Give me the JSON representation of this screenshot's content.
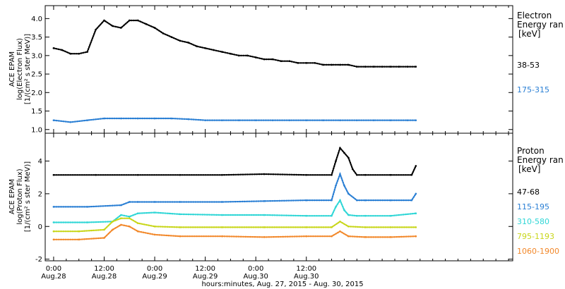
{
  "chart_data": [
    {
      "type": "scatter",
      "panel": "electron",
      "ylabel_lines": [
        "ACE EPAM",
        "log(Electron Flux)",
        "[1/(cm² s ster MeV)]"
      ],
      "ylim": [
        0.9,
        4.35
      ],
      "yticks": [
        "1.0",
        "1.5",
        "2.0",
        "2.5",
        "3.0",
        "3.5",
        "4.0"
      ],
      "legend_title_lines": [
        "Electron",
        "Energy ran",
        "[keV]"
      ],
      "grid": false,
      "series": [
        {
          "name": "38-53",
          "color": "#000000",
          "x": [
            0,
            2,
            4,
            6,
            8,
            10,
            12,
            14,
            16,
            18,
            20,
            22,
            24,
            26,
            28,
            30,
            32,
            34,
            36,
            38,
            40,
            42,
            44,
            46,
            48,
            50,
            52,
            54,
            56,
            58,
            60,
            62,
            64,
            66,
            68,
            70,
            72,
            74,
            76,
            78,
            80,
            82,
            84,
            86
          ],
          "values": [
            3.2,
            3.15,
            3.05,
            3.05,
            3.1,
            3.7,
            3.95,
            3.8,
            3.75,
            3.95,
            3.95,
            3.85,
            3.75,
            3.6,
            3.5,
            3.4,
            3.35,
            3.25,
            3.2,
            3.15,
            3.1,
            3.05,
            3.0,
            3.0,
            2.95,
            2.9,
            2.9,
            2.85,
            2.85,
            2.8,
            2.8,
            2.8,
            2.75,
            2.75,
            2.75,
            2.75,
            2.7,
            2.7,
            2.7,
            2.7,
            2.7,
            2.7,
            2.7,
            2.7
          ]
        },
        {
          "name": "175-315",
          "color": "#2a7fd4",
          "x": [
            0,
            4,
            8,
            12,
            16,
            20,
            24,
            28,
            32,
            36,
            40,
            44,
            48,
            52,
            56,
            60,
            64,
            68,
            72,
            76,
            80,
            84,
            86
          ],
          "values": [
            1.25,
            1.2,
            1.25,
            1.3,
            1.3,
            1.3,
            1.3,
            1.3,
            1.28,
            1.25,
            1.25,
            1.25,
            1.25,
            1.25,
            1.25,
            1.25,
            1.25,
            1.25,
            1.25,
            1.25,
            1.25,
            1.25,
            1.25
          ]
        }
      ]
    },
    {
      "type": "scatter",
      "panel": "proton",
      "ylabel_lines": [
        "ACE EPAM",
        "log(Proton Flux)",
        "[1/(cm² s ster MeV)]"
      ],
      "ylim": [
        -2.1,
        5.7
      ],
      "yticks": [
        "-2",
        "0",
        "2",
        "4"
      ],
      "legend_title_lines": [
        "Proton",
        "Energy ran",
        "[keV]"
      ],
      "grid": false,
      "series": [
        {
          "name": "47-68",
          "color": "#000000",
          "x": [
            0,
            10,
            20,
            30,
            40,
            50,
            60,
            66,
            67,
            68,
            69,
            70,
            71,
            72,
            74,
            80,
            85,
            86
          ],
          "values": [
            3.15,
            3.15,
            3.15,
            3.15,
            3.15,
            3.2,
            3.15,
            3.15,
            4.0,
            4.8,
            4.5,
            4.2,
            3.5,
            3.15,
            3.15,
            3.15,
            3.15,
            3.7
          ]
        },
        {
          "name": "115-195",
          "color": "#2a7fd4",
          "x": [
            0,
            8,
            16,
            18,
            20,
            24,
            30,
            40,
            50,
            60,
            66,
            67,
            68,
            69,
            70,
            72,
            74,
            80,
            85,
            86
          ],
          "values": [
            1.2,
            1.2,
            1.3,
            1.5,
            1.5,
            1.5,
            1.5,
            1.5,
            1.55,
            1.6,
            1.6,
            2.5,
            3.2,
            2.5,
            2.0,
            1.6,
            1.6,
            1.6,
            1.6,
            2.0
          ]
        },
        {
          "name": "310-580",
          "color": "#2fd6d6",
          "x": [
            0,
            8,
            14,
            16,
            18,
            20,
            24,
            30,
            40,
            50,
            60,
            66,
            67,
            68,
            69,
            70,
            72,
            74,
            80,
            86
          ],
          "values": [
            0.25,
            0.25,
            0.3,
            0.7,
            0.6,
            0.8,
            0.85,
            0.75,
            0.7,
            0.7,
            0.65,
            0.65,
            1.2,
            1.6,
            1.0,
            0.7,
            0.65,
            0.65,
            0.65,
            0.8
          ]
        },
        {
          "name": "795-1193",
          "color": "#c8d619",
          "x": [
            0,
            6,
            12,
            14,
            16,
            18,
            20,
            24,
            30,
            40,
            50,
            60,
            66,
            68,
            70,
            74,
            80,
            86
          ],
          "values": [
            -0.3,
            -0.3,
            -0.2,
            0.3,
            0.5,
            0.5,
            0.2,
            0.0,
            -0.05,
            -0.05,
            -0.05,
            -0.05,
            -0.05,
            0.3,
            0.0,
            -0.05,
            -0.05,
            -0.05
          ]
        },
        {
          "name": "1060-1900",
          "color": "#f2882a",
          "x": [
            0,
            6,
            12,
            14,
            16,
            18,
            20,
            24,
            30,
            40,
            50,
            60,
            66,
            68,
            70,
            74,
            80,
            86
          ],
          "values": [
            -0.8,
            -0.8,
            -0.7,
            -0.2,
            0.1,
            0.0,
            -0.3,
            -0.5,
            -0.6,
            -0.6,
            -0.65,
            -0.6,
            -0.6,
            -0.3,
            -0.6,
            -0.65,
            -0.65,
            -0.6
          ]
        }
      ]
    }
  ],
  "x_axis": {
    "xlim": [
      -2,
      109
    ],
    "major_ticks": [
      {
        "x": 0,
        "time": "0:00",
        "date": "Aug.28"
      },
      {
        "x": 12,
        "time": "12:00",
        "date": "Aug.28"
      },
      {
        "x": 24,
        "time": "0:00",
        "date": "Aug.29"
      },
      {
        "x": 36,
        "time": "12:00",
        "date": "Aug.29"
      },
      {
        "x": 48,
        "time": "0:00",
        "date": "Aug.30"
      },
      {
        "x": 60,
        "time": "12:00",
        "date": "Aug.30"
      }
    ],
    "minor_tick_step": 3,
    "xlabel": "hours:minutes, Aug. 27, 2015 - Aug. 30, 2015"
  }
}
